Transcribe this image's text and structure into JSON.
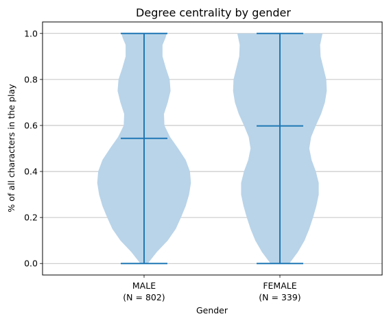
{
  "chart_data": {
    "type": "violin",
    "title": "Degree centrality by gender",
    "xlabel": "Gender",
    "ylabel": "% of all characters in the play",
    "ylim": [
      -0.05,
      1.05
    ],
    "yticks": [
      "0.0",
      "0.2",
      "0.4",
      "0.6",
      "0.8",
      "1.0"
    ],
    "grid": "horizontal",
    "color": "#1f77b4",
    "fill_color": "#b9d4e9",
    "categories": [
      {
        "label_line1": "MALE",
        "label_line2": "(N = 802)"
      },
      {
        "label_line1": "FEMALE",
        "label_line2": "(N = 339)"
      }
    ],
    "series": [
      {
        "min": 0.0,
        "max": 1.0,
        "median": 0.544,
        "density": [
          [
            0.0,
            0.08
          ],
          [
            0.05,
            0.27
          ],
          [
            0.1,
            0.5
          ],
          [
            0.15,
            0.67
          ],
          [
            0.2,
            0.78
          ],
          [
            0.25,
            0.88
          ],
          [
            0.3,
            0.95
          ],
          [
            0.35,
            0.99
          ],
          [
            0.4,
            0.97
          ],
          [
            0.45,
            0.88
          ],
          [
            0.5,
            0.72
          ],
          [
            0.55,
            0.55
          ],
          [
            0.6,
            0.43
          ],
          [
            0.65,
            0.42
          ],
          [
            0.7,
            0.5
          ],
          [
            0.75,
            0.56
          ],
          [
            0.8,
            0.54
          ],
          [
            0.85,
            0.46
          ],
          [
            0.9,
            0.39
          ],
          [
            0.95,
            0.39
          ],
          [
            0.98,
            0.45
          ],
          [
            1.0,
            0.48
          ]
        ]
      },
      {
        "min": 0.0,
        "max": 1.0,
        "median": 0.598,
        "density": [
          [
            0.0,
            0.2
          ],
          [
            0.05,
            0.38
          ],
          [
            0.1,
            0.52
          ],
          [
            0.15,
            0.62
          ],
          [
            0.2,
            0.7
          ],
          [
            0.25,
            0.77
          ],
          [
            0.3,
            0.82
          ],
          [
            0.35,
            0.82
          ],
          [
            0.4,
            0.76
          ],
          [
            0.45,
            0.67
          ],
          [
            0.5,
            0.62
          ],
          [
            0.55,
            0.66
          ],
          [
            0.6,
            0.76
          ],
          [
            0.65,
            0.87
          ],
          [
            0.7,
            0.95
          ],
          [
            0.75,
            0.99
          ],
          [
            0.8,
            0.98
          ],
          [
            0.85,
            0.92
          ],
          [
            0.9,
            0.86
          ],
          [
            0.95,
            0.85
          ],
          [
            0.98,
            0.88
          ],
          [
            1.0,
            0.9
          ]
        ]
      }
    ]
  }
}
